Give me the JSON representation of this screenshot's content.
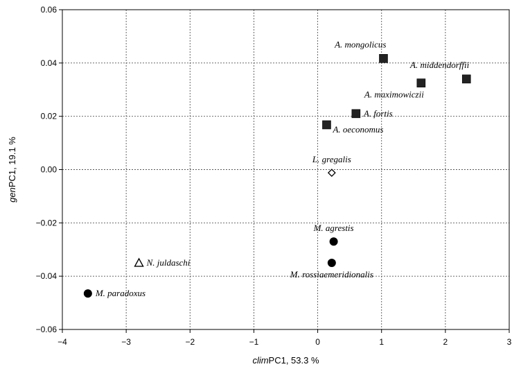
{
  "chart_data": {
    "type": "scatter",
    "xlabel": {
      "italic": "clim",
      "rest": "PC1, 53.3 %"
    },
    "ylabel": {
      "italic": "gen",
      "rest": "PC1, 19.1 %"
    },
    "xlim": [
      -4,
      3
    ],
    "ylim": [
      -0.06,
      0.06
    ],
    "x_ticks": [
      "−4",
      "−3",
      "−2",
      "−1",
      "0",
      "1",
      "2",
      "3"
    ],
    "x_tick_values": [
      -4,
      -3,
      -2,
      -1,
      0,
      1,
      2,
      3
    ],
    "y_ticks": [
      "0.06",
      "0.04",
      "0.02",
      "0.00",
      "−0.02",
      "−0.04",
      "−0.06"
    ],
    "y_tick_values": [
      0.06,
      0.04,
      0.02,
      0.0,
      -0.02,
      -0.04,
      -0.06
    ],
    "grid": true,
    "points": [
      {
        "label": "A. mongolicus",
        "x": 1.03,
        "y": 0.0417,
        "marker": "filled-square",
        "label_pos": "above-left"
      },
      {
        "label": "A. middendorffii",
        "x": 2.33,
        "y": 0.034,
        "marker": "filled-square",
        "label_pos": "above-left"
      },
      {
        "label": "A. maximowiczii",
        "x": 1.62,
        "y": 0.0325,
        "marker": "filled-square",
        "label_pos": "below-left"
      },
      {
        "label": "A. fortis",
        "x": 0.6,
        "y": 0.021,
        "marker": "filled-square",
        "label_pos": "right"
      },
      {
        "label": "A. oeconomus",
        "x": 0.14,
        "y": 0.0168,
        "marker": "filled-square",
        "label_pos": "below-right"
      },
      {
        "label": "L. gregalis",
        "x": 0.22,
        "y": -0.0012,
        "marker": "open-diamond",
        "label_pos": "above"
      },
      {
        "label": "M. agrestis",
        "x": 0.25,
        "y": -0.027,
        "marker": "filled-circle",
        "label_pos": "above"
      },
      {
        "label": "M. rossiaemeridionalis",
        "x": 0.22,
        "y": -0.035,
        "marker": "filled-circle",
        "label_pos": "below"
      },
      {
        "label": "N. juldaschi",
        "x": -2.8,
        "y": -0.035,
        "marker": "open-triangle",
        "label_pos": "right"
      },
      {
        "label": "M. paradoxus",
        "x": -3.6,
        "y": -0.0465,
        "marker": "filled-circle",
        "label_pos": "right"
      }
    ]
  }
}
